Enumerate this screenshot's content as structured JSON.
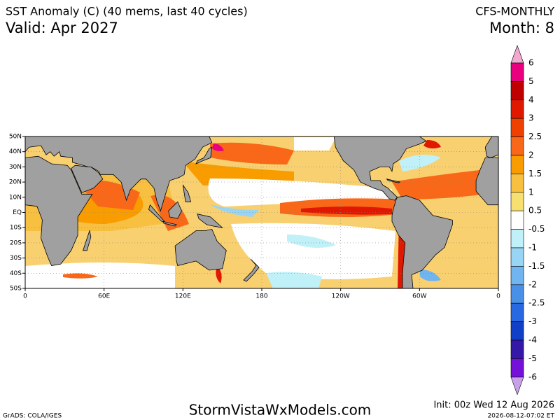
{
  "header": {
    "title": "SST Anomaly (C) (40 mems, last 40 cycles)",
    "valid": "Valid: Apr 2027",
    "model": "CFS-MONTHLY",
    "month": "Month: 8"
  },
  "map": {
    "lat_labels": [
      "50N",
      "40N",
      "30N",
      "20N",
      "10N",
      "EQ",
      "10S",
      "20S",
      "30S",
      "40S",
      "50S"
    ],
    "lon_labels": [
      "0",
      "60E",
      "120E",
      "180",
      "120W",
      "60W",
      "0"
    ]
  },
  "colorbar": {
    "levels": [
      6,
      5,
      4,
      3,
      2.5,
      2,
      1.5,
      1,
      0.5,
      -0.5,
      -1,
      -1.5,
      -2,
      -2.5,
      -3,
      -4,
      -5,
      -6
    ],
    "colors": [
      "#f4a8d0",
      "#e8007f",
      "#c00000",
      "#e01800",
      "#f04000",
      "#f86818",
      "#f89c00",
      "#f8c040",
      "#f8e070",
      "#ffffff",
      "#c0f0f8",
      "#98d4f4",
      "#70b4f0",
      "#4890e8",
      "#2868e0",
      "#1040c8",
      "#3418a8",
      "#7410d8",
      "#c8a0e8"
    ]
  },
  "footer": {
    "grads": "GrADS: COLA/IGES",
    "site": "StormVistaWxModels.com",
    "init": "Init: 00z Wed 12 Aug 2026",
    "timestamp": "2026-08-12-07:02 ET"
  }
}
